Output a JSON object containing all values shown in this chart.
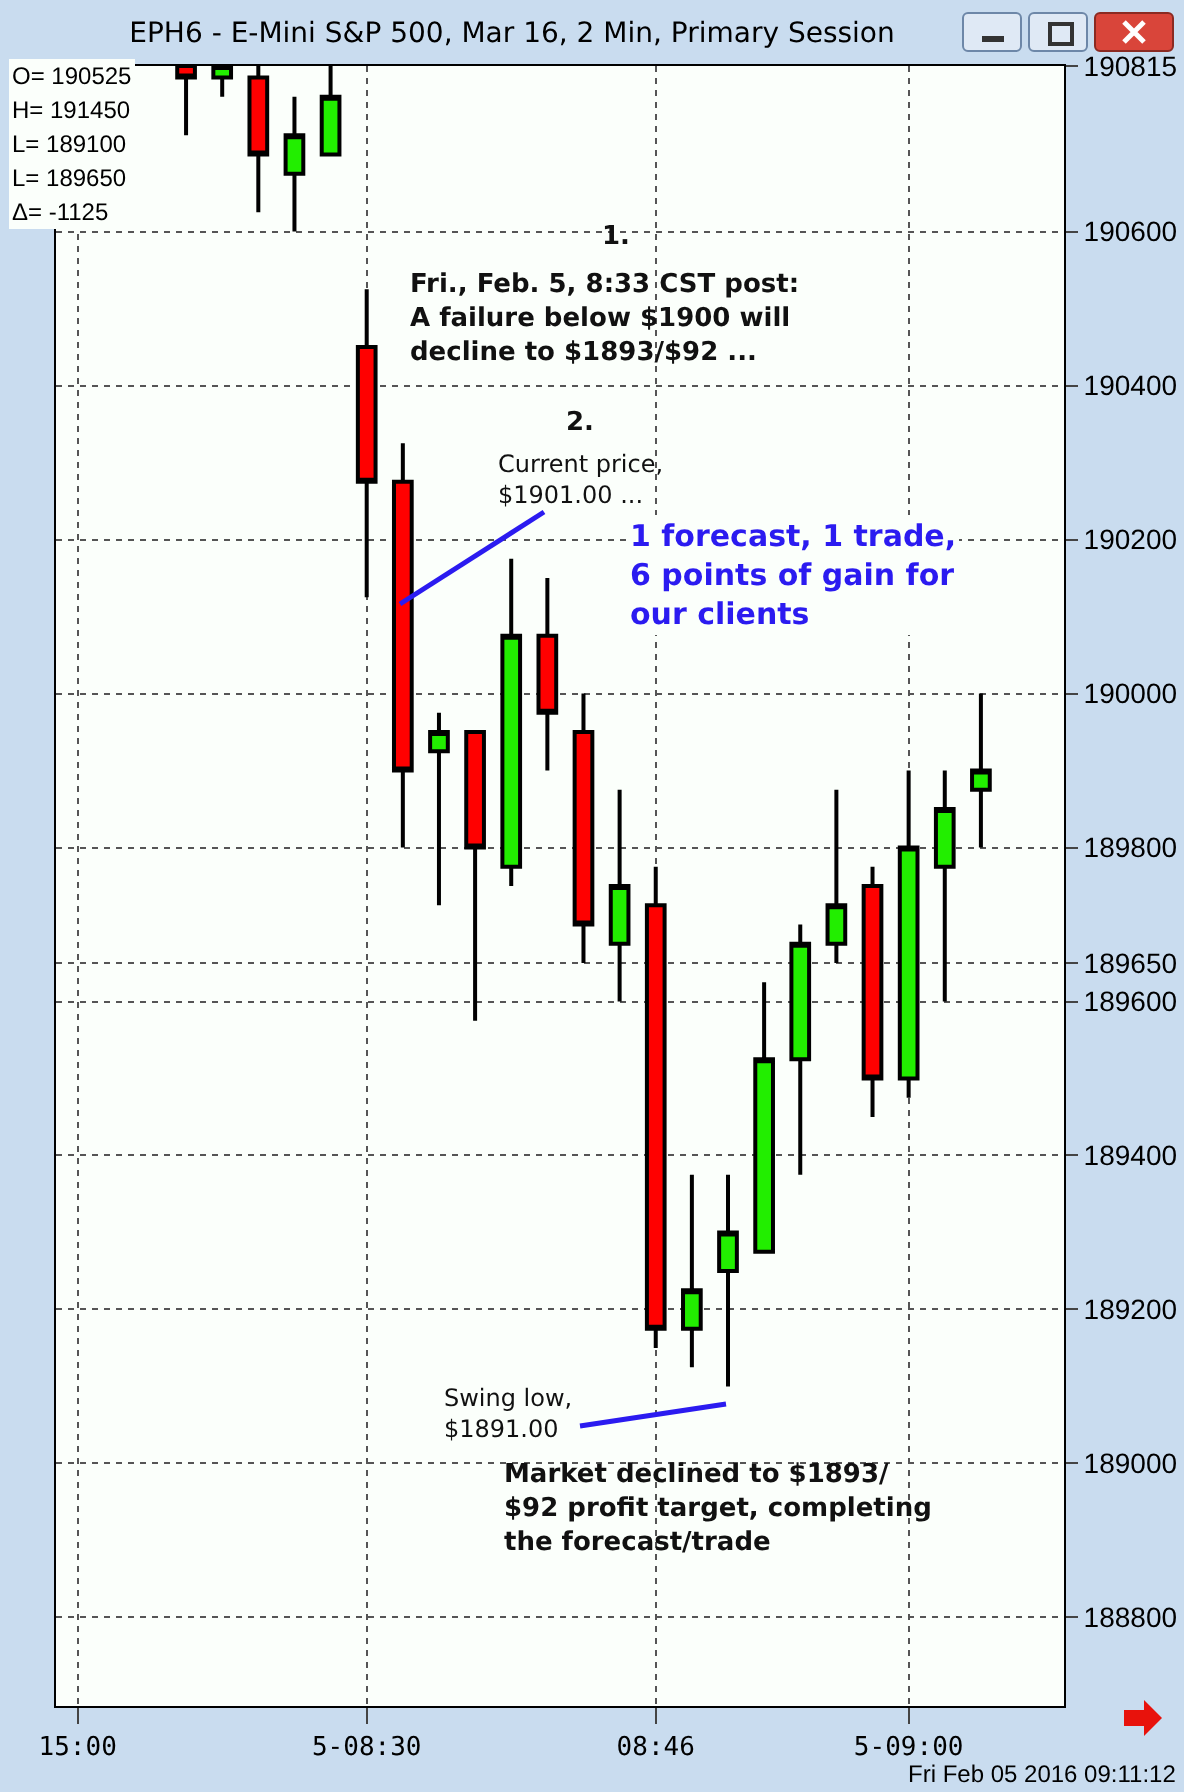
{
  "chart_data": {
    "type": "candlestick",
    "title": "EPH6 - E-Mini S&P 500, Mar 16, 2 Min, Primary Session",
    "categories": [
      "15:00",
      null,
      null,
      null,
      null,
      null,
      null,
      null,
      "5-08:30",
      null,
      null,
      null,
      null,
      null,
      null,
      null,
      "08:46",
      null,
      null,
      null,
      null,
      null,
      null,
      "5-09:00",
      null,
      null
    ],
    "ohlc": [
      null,
      null,
      null,
      [
        190815,
        190815,
        190725,
        190800
      ],
      [
        190800,
        190815,
        190775,
        190815
      ],
      [
        190800,
        190815,
        190625,
        190700
      ],
      [
        190675,
        190775,
        190600,
        190725
      ],
      [
        190700,
        190815,
        190700,
        190775
      ],
      [
        190450,
        190525,
        190125,
        190275
      ],
      [
        190275,
        190325,
        189800,
        189900
      ],
      [
        189925,
        189975,
        189725,
        189950
      ],
      [
        189950,
        189950,
        189575,
        189800
      ],
      [
        189775,
        190175,
        189750,
        190075
      ],
      [
        190075,
        190150,
        189900,
        189975
      ],
      [
        189950,
        190000,
        189650,
        189700
      ],
      [
        189675,
        189875,
        189600,
        189750
      ],
      [
        189725,
        189775,
        189150,
        189175
      ],
      [
        189175,
        189375,
        189125,
        189225
      ],
      [
        189250,
        189375,
        189100,
        189300
      ],
      [
        189275,
        189625,
        189275,
        189525
      ],
      [
        189525,
        189700,
        189375,
        189675
      ],
      [
        189675,
        189875,
        189650,
        189725
      ],
      [
        189750,
        189775,
        189450,
        189500
      ],
      [
        189500,
        189900,
        189475,
        189800
      ],
      [
        189775,
        189900,
        189600,
        189850
      ],
      [
        189875,
        190000,
        189800,
        189900
      ]
    ],
    "ylim": [
      188685,
      190815
    ],
    "yticks": [
      188800,
      189000,
      189200,
      189400,
      189600,
      {
        "value": 189650,
        "label": "189650"
      },
      189800,
      190000,
      190200,
      190400,
      190600,
      {
        "value": 190815,
        "label": "190815"
      }
    ],
    "grid": true,
    "annotations": [
      "1.",
      "Fri., Feb. 5, 8:33 CST post:\nA failure below $1900 will\ndecline to $1893/$92 ...",
      "2.",
      "Current price,\n$1901.00 ...",
      "1 forecast, 1 trade,\n6 points of gain for\nour clients",
      "Swing low,\n$1891.00",
      "Market declined to $1893/\n$92 profit target, completing\nthe forecast/trade",
      "O= 190525",
      "H= 191450",
      "L= 189100",
      "L= 189650",
      "Δ= -1125",
      "Fri Feb 05 2016 09:11:12"
    ]
  }
}
